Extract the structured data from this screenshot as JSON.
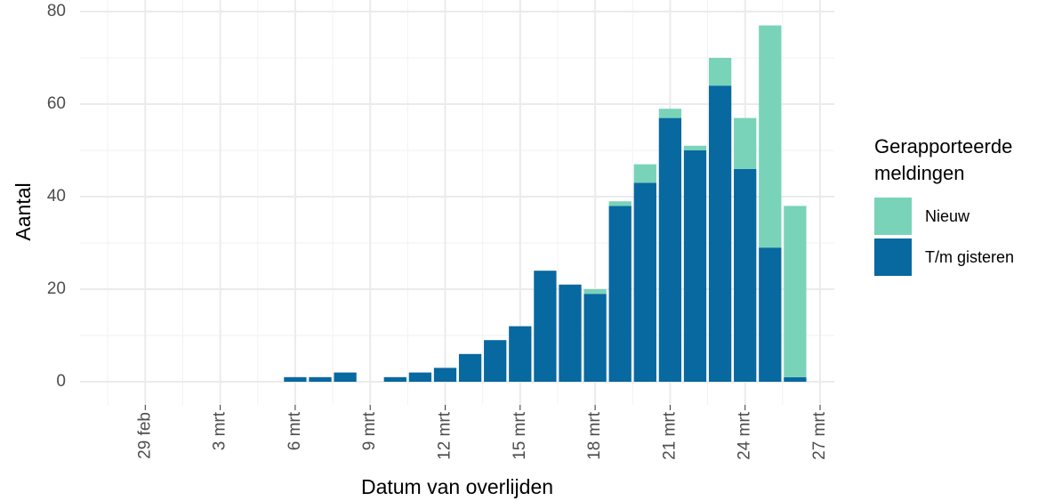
{
  "chart_data": {
    "type": "stacked-bar",
    "x_label": "Datum van overlijden",
    "y_label": "Aantal",
    "legend_title": [
      "Gerapporteerde",
      "meldingen"
    ],
    "x": [
      "02-27",
      "02-28",
      "02-29",
      "03-01",
      "03-02",
      "03-03",
      "03-04",
      "03-05",
      "03-06",
      "03-07",
      "03-08",
      "03-09",
      "03-10",
      "03-11",
      "03-12",
      "03-13",
      "03-14",
      "03-15",
      "03-16",
      "03-17",
      "03-18",
      "03-19",
      "03-20",
      "03-21",
      "03-22",
      "03-23",
      "03-24",
      "03-25",
      "03-26"
    ],
    "series": [
      {
        "name": "Nieuw",
        "color": "#79d3b9",
        "values": [
          0,
          0,
          0,
          0,
          0,
          0,
          0,
          0,
          0,
          0,
          0,
          0,
          0,
          0,
          0,
          0,
          0,
          0,
          0,
          0,
          1,
          1,
          4,
          2,
          1,
          6,
          11,
          48,
          37
        ]
      },
      {
        "name": "T/m gisteren",
        "color": "#0868a0",
        "values": [
          0,
          0,
          0,
          0,
          0,
          0,
          0,
          0,
          1,
          1,
          2,
          0,
          1,
          2,
          3,
          6,
          9,
          12,
          24,
          21,
          19,
          38,
          43,
          57,
          50,
          64,
          46,
          29,
          1
        ]
      }
    ],
    "xlim": [
      "02-26",
      "03-27"
    ],
    "xticks": [
      {
        "value": "02-29",
        "label": "29 feb"
      },
      {
        "value": "03-03",
        "label": "3 mrt"
      },
      {
        "value": "03-06",
        "label": "6 mrt"
      },
      {
        "value": "03-09",
        "label": "9 mrt"
      },
      {
        "value": "03-12",
        "label": "12 mrt"
      },
      {
        "value": "03-15",
        "label": "15 mrt"
      },
      {
        "value": "03-18",
        "label": "18 mrt"
      },
      {
        "value": "03-21",
        "label": "21 mrt"
      },
      {
        "value": "03-24",
        "label": "24 mrt"
      },
      {
        "value": "03-27",
        "label": "27 mrt"
      }
    ],
    "ylim": [
      -5,
      82.5
    ],
    "yticks": [
      0,
      20,
      40,
      60,
      80
    ],
    "grid": true
  }
}
